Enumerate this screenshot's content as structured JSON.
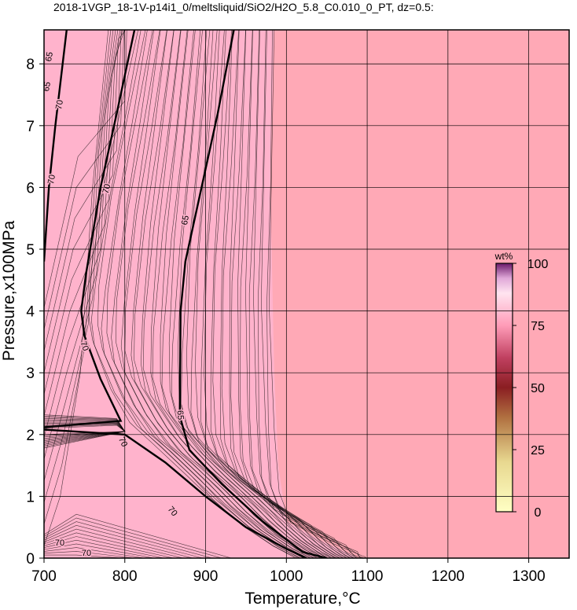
{
  "title": "2018-1VGP_18-1V-p14i1_0/meltsliquid/SiO2/H2O_5.8_C0.010_0_PT, dz=0.5:",
  "chart_data": {
    "type": "contour",
    "x_label": "Temperature,°C",
    "y_label": "Pressure,x100MPa",
    "xlim": [
      700,
      1350
    ],
    "ylim": [
      0,
      8.55
    ],
    "xticks": [
      700,
      800,
      900,
      1000,
      1100,
      1200,
      1300
    ],
    "yticks": [
      0,
      1,
      2,
      3,
      4,
      5,
      6,
      7,
      8
    ],
    "grid": true,
    "color": "#ffa9b6",
    "contour_labels": [
      65,
      65,
      70,
      70,
      70,
      65,
      70,
      65,
      70,
      70,
      70,
      70
    ],
    "colorbar": {
      "title": "wt%",
      "lim": [
        0,
        100
      ],
      "ticks": [
        0,
        25,
        50,
        75,
        100
      ]
    }
  }
}
